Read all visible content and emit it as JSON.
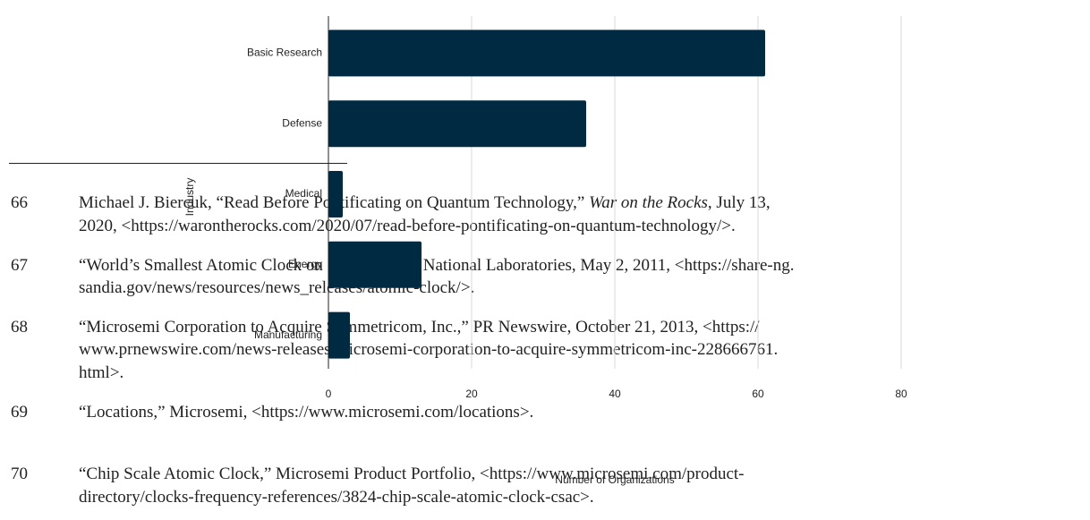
{
  "chart_data": {
    "type": "barh",
    "categories": [
      "Basic Research",
      "Defense",
      "Medical",
      "Energy",
      "Manufacturing"
    ],
    "values": [
      61,
      36,
      2,
      13,
      3
    ],
    "color": "#002a42",
    "xlim": [
      0,
      100
    ],
    "xticks": [
      0,
      20,
      40,
      60,
      80
    ],
    "grid": true,
    "xlabel": "Number of Organizations",
    "ylabel": "Industry"
  },
  "footnotes": [
    {
      "number": "66",
      "lines": [
        [
          {
            "text": "Michael J. Biercuk, “Read Before Pontificating on Quantum Technology,” "
          },
          {
            "text": "War on the Rocks",
            "italic": true
          },
          {
            "text": ", July 13,"
          }
        ],
        [
          {
            "text": "2020, <https://warontherocks.com/2020/07/read-before-pontificating-on-quantum-technology/>."
          }
        ]
      ]
    },
    {
      "number": "67",
      "lines": [
        [
          {
            "text": "“World’s Smallest Atomic Clock on Sale,” Sandia National Laboratories, May 2, 2011, <https://share-ng."
          }
        ],
        [
          {
            "text": "sandia.gov/news/resources/news_releases/atomic-clock/>."
          }
        ]
      ]
    },
    {
      "number": "68",
      "lines": [
        [
          {
            "text": "“Microsemi Corporation to Acquire Symmetricom, Inc.,” PR Newswire, October 21, 2013, <https://"
          }
        ],
        [
          {
            "text": "www.prnewswire.com/news-releases/microsemi-corporation-to-acquire-symmetricom-inc-228666761."
          }
        ],
        [
          {
            "text": "html>."
          }
        ]
      ]
    },
    {
      "number": "69",
      "lines": [
        [
          {
            "text": "“Locations,” Microsemi, <https://www.microsemi.com/locations>."
          }
        ]
      ]
    },
    {
      "number": "70",
      "lines": [
        [
          {
            "text": "“Chip Scale Atomic Clock,” Microsemi Product Portfolio, <https://www.microsemi.com/product-"
          }
        ],
        [
          {
            "text": "directory/clocks-frequency-references/3824-chip-scale-atomic-clock-csac>."
          }
        ]
      ]
    }
  ]
}
